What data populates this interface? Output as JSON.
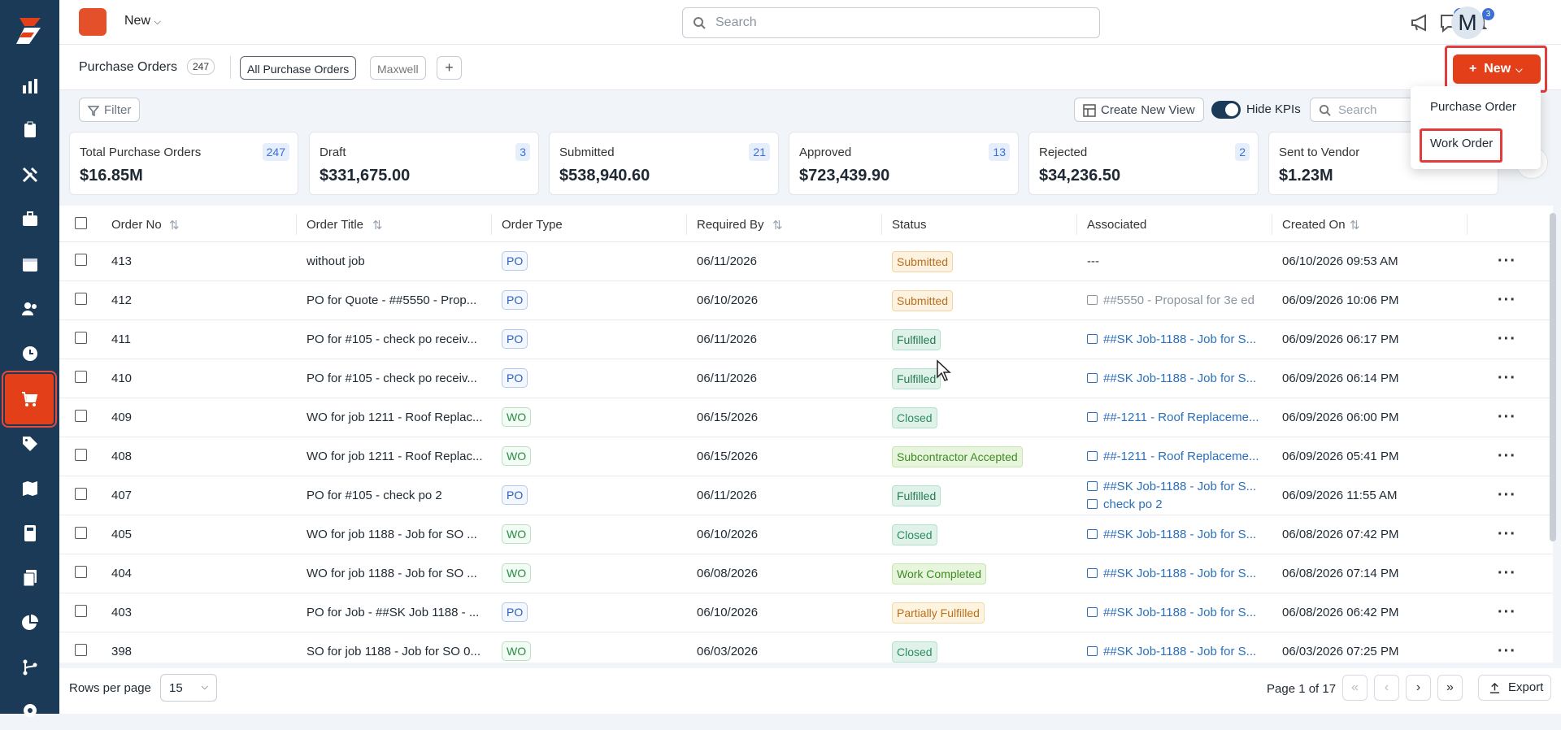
{
  "topbar": {
    "new_label": "New",
    "search_placeholder": "Search",
    "chat_badge": "1",
    "bell_badge": "3",
    "avatar_initial": "M"
  },
  "subbar": {
    "title": "Purchase Orders",
    "count": "247",
    "tabs": [
      "All Purchase Orders",
      "Maxwell"
    ],
    "plus": "+",
    "new_button": "New"
  },
  "toolbar": {
    "filter": "Filter",
    "create_view": "Create New View",
    "hide_kpis": "Hide KPIs",
    "search_placeholder": "Search"
  },
  "kpis": [
    {
      "label": "Total Purchase Orders",
      "value": "$16.85M",
      "count": "247"
    },
    {
      "label": "Draft",
      "value": "$331,675.00",
      "count": "3"
    },
    {
      "label": "Submitted",
      "value": "$538,940.60",
      "count": "21"
    },
    {
      "label": "Approved",
      "value": "$723,439.90",
      "count": "13"
    },
    {
      "label": "Rejected",
      "value": "$34,236.50",
      "count": "2"
    },
    {
      "label": "Sent to Vendor",
      "value": "$1.23M",
      "count": ""
    }
  ],
  "columns": [
    "Order No",
    "Order Title",
    "Order Type",
    "Required By",
    "Status",
    "Associated",
    "Created On"
  ],
  "rows": [
    {
      "no": "413",
      "title": "without job",
      "type": "PO",
      "required": "06/11/2026",
      "status": "Submitted",
      "assoc": "---",
      "assoc2": "",
      "created": "06/10/2026 09:53 AM"
    },
    {
      "no": "412",
      "title": "PO for Quote - ##5550 - Prop...",
      "type": "PO",
      "required": "06/10/2026",
      "status": "Submitted",
      "assoc": "##5550 - Proposal for 3e ed",
      "assoc2": "",
      "created": "06/09/2026 10:06 PM"
    },
    {
      "no": "411",
      "title": "PO for #105 - check po receiv...",
      "type": "PO",
      "required": "06/11/2026",
      "status": "Fulfilled",
      "assoc": "##SK Job-1188 - Job for S...",
      "assoc2": "",
      "created": "06/09/2026 06:17 PM"
    },
    {
      "no": "410",
      "title": "PO for #105 - check po receiv...",
      "type": "PO",
      "required": "06/11/2026",
      "status": "Fulfilled",
      "assoc": "##SK Job-1188 - Job for S...",
      "assoc2": "",
      "created": "06/09/2026 06:14 PM"
    },
    {
      "no": "409",
      "title": "WO for job 1211 - Roof Replac...",
      "type": "WO",
      "required": "06/15/2026",
      "status": "Closed",
      "assoc": "##-1211 - Roof Replaceme...",
      "assoc2": "",
      "created": "06/09/2026 06:00 PM"
    },
    {
      "no": "408",
      "title": "WO for job 1211 - Roof Replac...",
      "type": "WO",
      "required": "06/15/2026",
      "status": "Subcontractor Accepted",
      "assoc": "##-1211 - Roof Replaceme...",
      "assoc2": "",
      "created": "06/09/2026 05:41 PM"
    },
    {
      "no": "407",
      "title": "PO for #105 - check po 2",
      "type": "PO",
      "required": "06/11/2026",
      "status": "Fulfilled",
      "assoc": "##SK Job-1188 - Job for S...",
      "assoc2": "check po 2",
      "created": "06/09/2026 11:55 AM"
    },
    {
      "no": "405",
      "title": "WO for job 1188 - Job for SO ...",
      "type": "WO",
      "required": "06/10/2026",
      "status": "Closed",
      "assoc": "##SK Job-1188 - Job for S...",
      "assoc2": "",
      "created": "06/08/2026 07:42 PM"
    },
    {
      "no": "404",
      "title": "WO for job 1188 - Job for SO ...",
      "type": "WO",
      "required": "06/08/2026",
      "status": "Work Completed",
      "assoc": "##SK Job-1188 - Job for S...",
      "assoc2": "",
      "created": "06/08/2026 07:14 PM"
    },
    {
      "no": "403",
      "title": "PO for Job - ##SK Job 1188 - ...",
      "type": "PO",
      "required": "06/10/2026",
      "status": "Partially Fulfilled",
      "assoc": "##SK Job-1188 - Job for S...",
      "assoc2": "",
      "created": "06/08/2026 06:42 PM"
    },
    {
      "no": "398",
      "title": "SO for job 1188 - Job for SO 0...",
      "type": "WO",
      "required": "06/03/2026",
      "status": "Closed",
      "assoc": "##SK Job-1188 - Job for S...",
      "assoc2": "",
      "created": "06/03/2026 07:25 PM"
    }
  ],
  "footer": {
    "rows_per_page": "Rows per page",
    "rows_value": "15",
    "page_info": "Page 1 of 17",
    "export": "Export"
  },
  "dropdown": {
    "items": [
      "Purchase Order",
      "Work Order"
    ]
  },
  "colors": {
    "sidebar": "#1b3a57",
    "accent": "#e3401a"
  }
}
